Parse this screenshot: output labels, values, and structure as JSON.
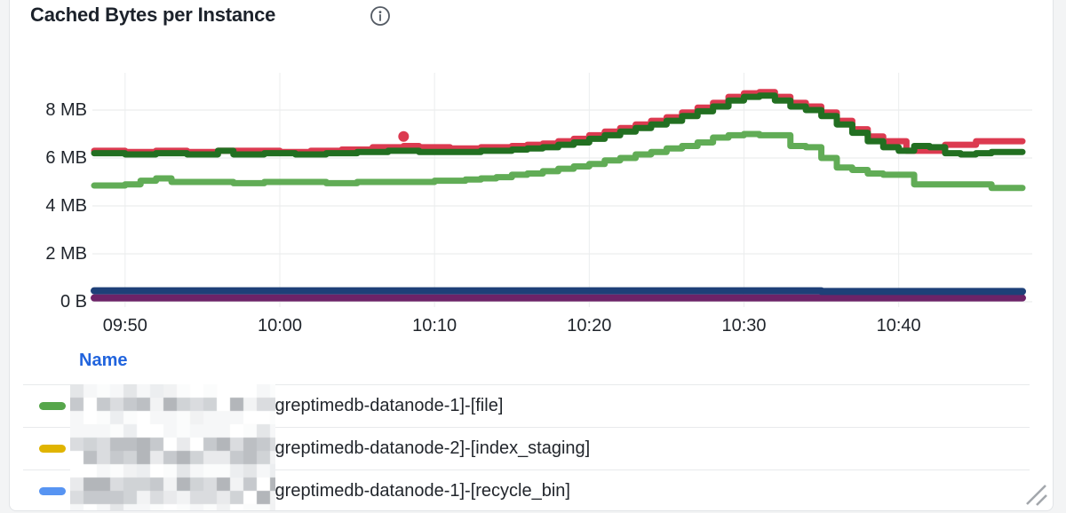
{
  "panel": {
    "title": "Cached Bytes per Instance"
  },
  "legend": {
    "header": "Name",
    "rows": [
      {
        "color": "#56a64b",
        "name": "[greptimedb-datanode-1]-[file]"
      },
      {
        "color": "#e0b400",
        "name": "[greptimedb-datanode-2]-[index_staging]"
      },
      {
        "color": "#5794f2",
        "name": "[greptimedb-datanode-1]-[recycle_bin]"
      }
    ]
  },
  "chart_data": {
    "type": "line",
    "title": "Cached Bytes per Instance",
    "xlabel": "",
    "ylabel": "",
    "unit": "bytes",
    "grid": true,
    "legend_position": "bottom-table",
    "x_time_range": [
      "09:48",
      "10:48"
    ],
    "x_ticks": [
      "09:50",
      "10:00",
      "10:10",
      "10:20",
      "10:30",
      "10:40"
    ],
    "x_tick_minutes": [
      2,
      12,
      22,
      32,
      42,
      52
    ],
    "y_ticks": [
      "0 B",
      "2 MB",
      "4 MB",
      "6 MB",
      "8 MB"
    ],
    "y_tick_values_mb": [
      0,
      2,
      4,
      6,
      8
    ],
    "ylim_mb": [
      0,
      10
    ],
    "series": [
      {
        "name": "crimson-series",
        "color": "#dc3a50",
        "width": 7,
        "unit": "MB",
        "outlier": [
          20,
          6.9
        ],
        "points": [
          [
            0,
            6.3
          ],
          [
            2,
            6.25
          ],
          [
            4,
            6.3
          ],
          [
            6,
            6.25
          ],
          [
            8,
            6.3
          ],
          [
            10,
            6.3
          ],
          [
            12,
            6.25
          ],
          [
            14,
            6.3
          ],
          [
            16,
            6.35
          ],
          [
            18,
            6.45
          ],
          [
            20,
            6.5
          ],
          [
            21,
            6.45
          ],
          [
            23,
            6.4
          ],
          [
            25,
            6.45
          ],
          [
            27,
            6.5
          ],
          [
            28,
            6.55
          ],
          [
            29,
            6.6
          ],
          [
            30,
            6.7
          ],
          [
            31,
            6.8
          ],
          [
            32,
            6.95
          ],
          [
            33,
            7.1
          ],
          [
            34,
            7.25
          ],
          [
            35,
            7.4
          ],
          [
            36,
            7.55
          ],
          [
            37,
            7.7
          ],
          [
            38,
            7.9
          ],
          [
            39,
            8.1
          ],
          [
            40,
            8.3
          ],
          [
            41,
            8.55
          ],
          [
            42,
            8.7
          ],
          [
            43,
            8.75
          ],
          [
            44,
            8.55
          ],
          [
            45,
            8.3
          ],
          [
            46,
            8.15
          ],
          [
            47,
            7.9
          ],
          [
            48,
            7.55
          ],
          [
            49,
            7.2
          ],
          [
            50,
            6.9
          ],
          [
            51,
            6.7
          ],
          [
            52.5,
            6.3
          ],
          [
            55,
            6.55
          ],
          [
            57,
            6.7
          ],
          [
            60,
            6.7
          ]
        ]
      },
      {
        "name": "dark-green-series",
        "color": "#226f21",
        "width": 7,
        "unit": "MB",
        "points": [
          [
            0,
            6.2
          ],
          [
            2,
            6.15
          ],
          [
            4,
            6.2
          ],
          [
            6,
            6.15
          ],
          [
            8,
            6.3
          ],
          [
            9,
            6.15
          ],
          [
            11,
            6.2
          ],
          [
            13,
            6.15
          ],
          [
            15,
            6.2
          ],
          [
            17,
            6.25
          ],
          [
            19,
            6.3
          ],
          [
            21,
            6.25
          ],
          [
            23,
            6.25
          ],
          [
            25,
            6.3
          ],
          [
            27,
            6.35
          ],
          [
            28,
            6.4
          ],
          [
            29,
            6.45
          ],
          [
            30,
            6.55
          ],
          [
            31,
            6.65
          ],
          [
            32,
            6.8
          ],
          [
            33,
            6.95
          ],
          [
            34,
            7.1
          ],
          [
            35,
            7.25
          ],
          [
            36,
            7.4
          ],
          [
            37,
            7.55
          ],
          [
            38,
            7.75
          ],
          [
            39,
            7.95
          ],
          [
            40,
            8.15
          ],
          [
            41,
            8.4
          ],
          [
            42,
            8.55
          ],
          [
            43,
            8.6
          ],
          [
            44,
            8.4
          ],
          [
            45,
            8.15
          ],
          [
            46,
            8.0
          ],
          [
            47,
            7.75
          ],
          [
            48,
            7.4
          ],
          [
            49,
            7.05
          ],
          [
            50,
            6.7
          ],
          [
            51,
            6.45
          ],
          [
            52,
            6.3
          ],
          [
            53,
            6.5
          ],
          [
            54,
            6.45
          ],
          [
            55,
            6.2
          ],
          [
            56,
            6.15
          ],
          [
            57,
            6.2
          ],
          [
            58,
            6.25
          ],
          [
            60,
            6.25
          ]
        ]
      },
      {
        "name": "light-green-series",
        "color": "#61ac56",
        "width": 7,
        "unit": "MB",
        "points": [
          [
            0,
            4.85
          ],
          [
            2,
            4.9
          ],
          [
            3,
            5.05
          ],
          [
            4,
            5.15
          ],
          [
            5,
            5.0
          ],
          [
            7,
            5.0
          ],
          [
            9,
            4.95
          ],
          [
            11,
            5.0
          ],
          [
            13,
            5.0
          ],
          [
            15,
            4.95
          ],
          [
            17,
            5.0
          ],
          [
            19,
            5.0
          ],
          [
            21,
            5.0
          ],
          [
            22,
            5.05
          ],
          [
            24,
            5.1
          ],
          [
            25,
            5.15
          ],
          [
            26,
            5.2
          ],
          [
            27,
            5.3
          ],
          [
            28,
            5.35
          ],
          [
            29,
            5.45
          ],
          [
            30,
            5.55
          ],
          [
            31,
            5.65
          ],
          [
            32,
            5.75
          ],
          [
            33,
            5.9
          ],
          [
            34,
            6.0
          ],
          [
            35,
            6.15
          ],
          [
            36,
            6.25
          ],
          [
            37,
            6.4
          ],
          [
            38,
            6.5
          ],
          [
            39,
            6.65
          ],
          [
            40,
            6.85
          ],
          [
            41,
            6.95
          ],
          [
            42,
            7.0
          ],
          [
            43,
            6.95
          ],
          [
            45,
            6.5
          ],
          [
            46,
            6.45
          ],
          [
            47,
            6.0
          ],
          [
            48,
            5.6
          ],
          [
            49,
            5.5
          ],
          [
            50,
            5.35
          ],
          [
            51,
            5.3
          ],
          [
            53,
            4.9
          ],
          [
            58,
            4.75
          ],
          [
            60,
            4.75
          ]
        ]
      },
      {
        "name": "purple-series",
        "color": "#6d2368",
        "width": 8,
        "unit": "MB",
        "points": [
          [
            0,
            0.16
          ],
          [
            60,
            0.16
          ]
        ]
      },
      {
        "name": "navy-series",
        "color": "#1e4078",
        "width": 8,
        "unit": "MB",
        "points": [
          [
            0,
            0.46
          ],
          [
            46,
            0.46
          ],
          [
            47,
            0.43
          ],
          [
            60,
            0.43
          ]
        ]
      }
    ]
  },
  "colors": {
    "grid": "#e7e9ea",
    "grid_vertical": "#ebedee",
    "axis_text": "#1f242b",
    "link_blue": "#2164dd",
    "panel_border": "#e2e4e7",
    "page_background": "#f3f4f5"
  }
}
